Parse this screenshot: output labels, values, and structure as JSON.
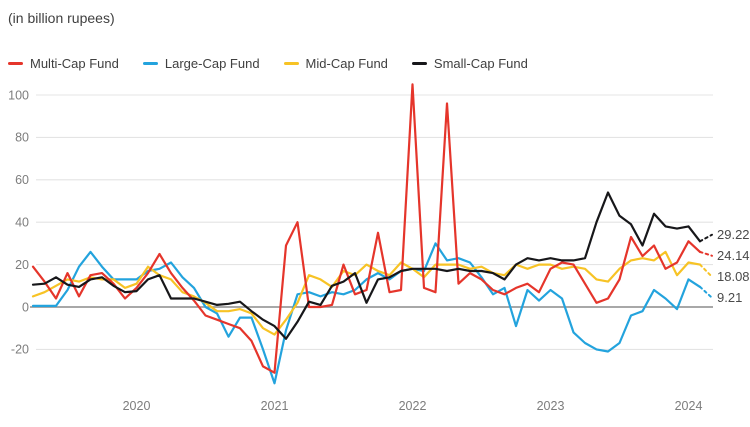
{
  "title": "(in billion rupees)",
  "legend": {
    "items": [
      {
        "label": "Multi-Cap Fund",
        "color": "#e5352b"
      },
      {
        "label": "Large-Cap Fund",
        "color": "#23a3dd"
      },
      {
        "label": "Mid-Cap Fund",
        "color": "#f7c325"
      },
      {
        "label": "Small-Cap Fund",
        "color": "#17171a"
      }
    ]
  },
  "end_labels": [
    "29.22",
    "24.14",
    "18.08",
    "9.21"
  ],
  "chart_data": {
    "type": "line",
    "title": "(in billion rupees)",
    "xlabel": "",
    "ylabel": "billion rupees",
    "ylim": [
      -40,
      110
    ],
    "y_ticks": [
      100,
      80,
      60,
      40,
      20,
      0,
      -20
    ],
    "grid": "horizontal",
    "zero_line": true,
    "legend_position": "top",
    "x_tick_labels": [
      "2020",
      "2021",
      "2022",
      "2023",
      "2024"
    ],
    "x_tick_month_index": [
      9,
      21,
      33,
      45,
      57
    ],
    "x": [
      "2019-04",
      "2019-05",
      "2019-06",
      "2019-07",
      "2019-08",
      "2019-09",
      "2019-10",
      "2019-11",
      "2019-12",
      "2020-01",
      "2020-02",
      "2020-03",
      "2020-04",
      "2020-05",
      "2020-06",
      "2020-07",
      "2020-08",
      "2020-09",
      "2020-10",
      "2020-11",
      "2020-12",
      "2021-01",
      "2021-02",
      "2021-03",
      "2021-04",
      "2021-05",
      "2021-06",
      "2021-07",
      "2021-08",
      "2021-09",
      "2021-10",
      "2021-11",
      "2021-12",
      "2022-01",
      "2022-02",
      "2022-03",
      "2022-04",
      "2022-05",
      "2022-06",
      "2022-07",
      "2022-08",
      "2022-09",
      "2022-10",
      "2022-11",
      "2022-12",
      "2023-01",
      "2023-02",
      "2023-03",
      "2023-04",
      "2023-05",
      "2023-06",
      "2023-07",
      "2023-08",
      "2023-09",
      "2023-10",
      "2023-11",
      "2023-12",
      "2024-01",
      "2024-02",
      "2024-03"
    ],
    "last_point_style": "dotted-projection",
    "series": [
      {
        "name": "Multi-Cap Fund",
        "color": "#e5352b",
        "end_label": "24.14",
        "values": [
          19,
          12,
          4,
          16,
          5,
          15,
          16,
          11,
          4,
          9,
          16,
          25,
          16,
          9,
          3,
          -4,
          -6,
          -8,
          -10,
          -16,
          -28,
          -31,
          29,
          40,
          0,
          0,
          1,
          20,
          6,
          8,
          35,
          7,
          8,
          105,
          9,
          7,
          96,
          11,
          16,
          13,
          8,
          6,
          9,
          11,
          7,
          18,
          21,
          20,
          11,
          2,
          4,
          13,
          33,
          24,
          29,
          18,
          21,
          31,
          26,
          24.14
        ]
      },
      {
        "name": "Large-Cap Fund",
        "color": "#23a3dd",
        "end_label": "9.21",
        "values": [
          0.5,
          0.5,
          0.5,
          8,
          19,
          26,
          19,
          13,
          13,
          13,
          17,
          18,
          21,
          14,
          9,
          0,
          -3,
          -14,
          -5,
          -5,
          -20,
          -36,
          -11,
          6,
          7,
          5,
          7,
          6,
          8,
          13,
          16,
          13,
          17,
          18,
          17,
          30,
          22,
          23,
          21,
          14,
          6,
          9,
          -9,
          8,
          3,
          8,
          4,
          -12,
          -17,
          -20,
          -21,
          -17,
          -4,
          -2,
          8,
          4,
          -1,
          13,
          9.5,
          9.21
        ]
      },
      {
        "name": "Mid-Cap Fund",
        "color": "#f7c325",
        "end_label": "18.08",
        "values": [
          5,
          7,
          10,
          13,
          12,
          14,
          13,
          13,
          9,
          11,
          19,
          15,
          13,
          7,
          5,
          2,
          -2,
          -2,
          -1,
          -3,
          -10,
          -13,
          -6,
          2,
          15,
          13,
          9.5,
          17,
          15,
          20,
          17,
          15,
          21,
          18,
          14,
          20,
          20,
          20,
          18,
          19,
          16,
          15,
          20,
          18,
          20,
          20,
          18,
          19,
          18,
          13,
          12,
          18,
          22,
          23,
          22,
          26,
          15,
          21,
          20,
          18.08
        ]
      },
      {
        "name": "Small-Cap Fund",
        "color": "#17171a",
        "end_label": "29.22",
        "values": [
          10.5,
          11,
          14,
          10.5,
          9.5,
          13,
          14,
          10,
          7,
          7.5,
          13,
          15,
          4,
          4,
          4,
          2.5,
          1,
          1.5,
          2.5,
          -2,
          -6,
          -9,
          -15,
          -7,
          2.5,
          1,
          10,
          12,
          16,
          2,
          13,
          14,
          17,
          18,
          18,
          18,
          17,
          18,
          17,
          17,
          16,
          13,
          20,
          23,
          22,
          23,
          22,
          22,
          23,
          40,
          54,
          43,
          39,
          29,
          44,
          38,
          37,
          38,
          31,
          29.22
        ]
      }
    ],
    "colors": {
      "grid": "#e4e4e4",
      "zero_line": "#8c8c8c",
      "axis_text": "#7d7d7d",
      "end_label_text": "#4a4a4a"
    }
  }
}
